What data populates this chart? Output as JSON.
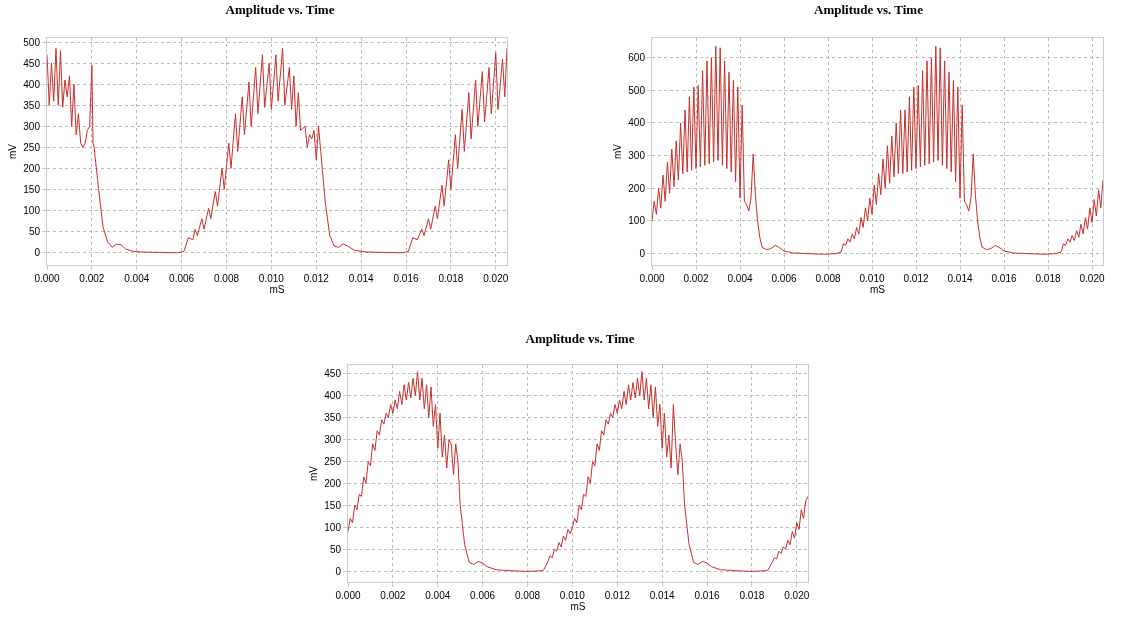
{
  "chart_data": [
    {
      "type": "line",
      "title": "Amplitude vs. Time",
      "xlabel": "mS",
      "ylabel": "mV",
      "xlim": [
        0,
        0.0205
      ],
      "xticks": [
        {
          "value": 0,
          "label": "0.000"
        },
        {
          "value": 0.002,
          "label": "0.002"
        },
        {
          "value": 0.004,
          "label": "0.004"
        },
        {
          "value": 0.006,
          "label": "0.006"
        },
        {
          "value": 0.008,
          "label": "0.008"
        },
        {
          "value": 0.01,
          "label": "0.010"
        },
        {
          "value": 0.012,
          "label": "0.012"
        },
        {
          "value": 0.014,
          "label": "0.014"
        },
        {
          "value": 0.016,
          "label": "0.016"
        },
        {
          "value": 0.018,
          "label": "0.018"
        },
        {
          "value": 0.02,
          "label": "0.020"
        }
      ],
      "ylim": [
        -30,
        510
      ],
      "yticks": [
        0,
        50,
        100,
        150,
        200,
        250,
        300,
        350,
        400,
        450,
        500
      ],
      "grid": true,
      "line_style": "solid",
      "series": [
        {
          "color": "#c8302c",
          "x": [
            0,
            0.0001,
            0.0002,
            0.0003,
            0.0004,
            0.0005,
            0.0006,
            0.0007,
            0.0008,
            0.0009,
            0.001,
            0.0011,
            0.0012,
            0.0013,
            0.0014,
            0.0015,
            0.0016,
            0.0017,
            0.0018,
            0.0019,
            0.002,
            0.00205,
            0.0021,
            0.0023,
            0.0025,
            0.0027,
            0.0029,
            0.0031,
            0.0033,
            0.0035,
            0.0038,
            0.0042,
            0.005,
            0.0058,
            0.0061,
            0.0063,
            0.0065,
            0.0066,
            0.0067,
            0.0069,
            0.007,
            0.0072,
            0.0073,
            0.0075,
            0.0076,
            0.0078,
            0.0079,
            0.0081,
            0.0082,
            0.0084,
            0.0085,
            0.0087,
            0.0088,
            0.009,
            0.0091,
            0.0093,
            0.0094,
            0.0096,
            0.0097,
            0.0099,
            0.01,
            0.0102,
            0.0103,
            0.0105,
            0.0106,
            0.0108,
            0.0109,
            0.011,
            0.0111,
            0.0112,
            0.0113,
            0.0115,
            0.0116,
            0.0117,
            0.0118,
            0.0119,
            0.012,
            0.0121,
            0.0122,
            0.0124,
            0.0126,
            0.0128,
            0.013,
            0.0132,
            0.0134,
            0.0137,
            0.0142,
            0.015,
            0.0158,
            0.0161,
            0.0163,
            0.0165,
            0.0167,
            0.0168,
            0.017,
            0.0171,
            0.0173,
            0.0174,
            0.0176,
            0.0177,
            0.0179,
            0.018,
            0.0182,
            0.0183,
            0.0185,
            0.0186,
            0.0188,
            0.0189,
            0.0191,
            0.0192,
            0.0194,
            0.0195,
            0.0197,
            0.0198,
            0.02,
            0.0201,
            0.0203,
            0.0204,
            0.0205
          ],
          "values": [
            470,
            350,
            450,
            360,
            485,
            350,
            480,
            345,
            410,
            370,
            420,
            300,
            400,
            280,
            330,
            260,
            250,
            260,
            290,
            300,
            445,
            260,
            250,
            150,
            60,
            25,
            12,
            20,
            18,
            8,
            3,
            1,
            0,
            -1,
            2,
            35,
            30,
            55,
            40,
            80,
            55,
            105,
            80,
            145,
            110,
            200,
            150,
            260,
            200,
            330,
            240,
            370,
            280,
            405,
            300,
            440,
            330,
            470,
            345,
            450,
            340,
            470,
            360,
            485,
            350,
            440,
            340,
            420,
            300,
            380,
            290,
            300,
            250,
            280,
            270,
            290,
            220,
            300,
            240,
            120,
            40,
            15,
            12,
            20,
            15,
            5,
            1,
            0,
            -1,
            2,
            35,
            30,
            55,
            40,
            80,
            55,
            110,
            80,
            160,
            110,
            220,
            150,
            280,
            200,
            340,
            240,
            380,
            270,
            410,
            300,
            430,
            310,
            440,
            330,
            475,
            340,
            460,
            370,
            485
          ]
        }
      ]
    },
    {
      "type": "line",
      "title": "Amplitude vs. Time",
      "xlabel": "mS",
      "ylabel": "mV",
      "xlim": [
        0,
        0.0205
      ],
      "xticks": [
        {
          "value": 0,
          "label": "0.000"
        },
        {
          "value": 0.002,
          "label": "0.002"
        },
        {
          "value": 0.004,
          "label": "0.004"
        },
        {
          "value": 0.006,
          "label": "0.006"
        },
        {
          "value": 0.008,
          "label": "0.008"
        },
        {
          "value": 0.01,
          "label": "0.010"
        },
        {
          "value": 0.012,
          "label": "0.012"
        },
        {
          "value": 0.014,
          "label": "0.014"
        },
        {
          "value": 0.016,
          "label": "0.016"
        },
        {
          "value": 0.018,
          "label": "0.018"
        },
        {
          "value": 0.02,
          "label": "0.020"
        }
      ],
      "ylim": [
        -35,
        660
      ],
      "yticks": [
        0,
        100,
        200,
        300,
        400,
        500,
        600
      ],
      "grid": true,
      "line_style": "solid",
      "series": [
        {
          "color": "#c8302c",
          "x": [
            0,
            0.0001,
            0.0002,
            0.0003,
            0.0004,
            0.0005,
            0.0006,
            0.0007,
            0.0008,
            0.0009,
            0.001,
            0.0011,
            0.0012,
            0.0013,
            0.0014,
            0.0015,
            0.0016,
            0.0017,
            0.0018,
            0.0019,
            0.002,
            0.0021,
            0.0022,
            0.0023,
            0.0024,
            0.0025,
            0.0026,
            0.0027,
            0.0028,
            0.0029,
            0.003,
            0.0031,
            0.0032,
            0.0033,
            0.0034,
            0.0035,
            0.0036,
            0.0037,
            0.0038,
            0.0039,
            0.004,
            0.0041,
            0.0042,
            0.0043,
            0.0044,
            0.0045,
            0.0046,
            0.0047,
            0.0048,
            0.0049,
            0.005,
            0.0052,
            0.0054,
            0.0056,
            0.0058,
            0.006,
            0.0064,
            0.007,
            0.0078,
            0.0084,
            0.0086,
            0.0087,
            0.0088,
            0.0089,
            0.009,
            0.0091,
            0.0092,
            0.0093,
            0.0094,
            0.0095,
            0.0096,
            0.0097,
            0.0098,
            0.0099,
            0.01,
            0.0101,
            0.0102,
            0.0103,
            0.0104,
            0.0105,
            0.0106,
            0.0107,
            0.0108,
            0.0109,
            0.011,
            0.0111,
            0.0112,
            0.0113,
            0.0114,
            0.0115,
            0.0116,
            0.0117,
            0.0118,
            0.0119,
            0.012,
            0.0121,
            0.0122,
            0.0123,
            0.0124,
            0.0125,
            0.0126,
            0.0127,
            0.0128,
            0.0129,
            0.013,
            0.0131,
            0.0132,
            0.0133,
            0.0134,
            0.0135,
            0.0136,
            0.0137,
            0.0138,
            0.0139,
            0.014,
            0.0141,
            0.0142,
            0.0143,
            0.0144,
            0.0145,
            0.0146,
            0.0147,
            0.0148,
            0.0149,
            0.015,
            0.0152,
            0.0154,
            0.0156,
            0.0158,
            0.016,
            0.0164,
            0.017,
            0.0178,
            0.0184,
            0.0186,
            0.0187,
            0.0188,
            0.0189,
            0.019,
            0.0191,
            0.0192,
            0.0193,
            0.0194,
            0.0195,
            0.0196,
            0.0197,
            0.0198,
            0.0199,
            0.02,
            0.0201,
            0.0202,
            0.0203,
            0.0204,
            0.0205
          ],
          "values": [
            100,
            160,
            120,
            200,
            140,
            240,
            160,
            280,
            185,
            320,
            205,
            345,
            225,
            400,
            245,
            440,
            250,
            480,
            255,
            510,
            260,
            515,
            265,
            560,
            270,
            590,
            275,
            600,
            280,
            635,
            285,
            630,
            270,
            590,
            260,
            555,
            250,
            530,
            220,
            510,
            170,
            455,
            160,
            150,
            130,
            170,
            305,
            180,
            100,
            50,
            20,
            12,
            15,
            25,
            18,
            8,
            2,
            0,
            -2,
            0,
            5,
            30,
            25,
            45,
            35,
            60,
            45,
            80,
            60,
            110,
            80,
            140,
            100,
            170,
            120,
            210,
            150,
            245,
            180,
            290,
            200,
            330,
            215,
            360,
            235,
            400,
            245,
            440,
            245,
            440,
            250,
            480,
            255,
            510,
            260,
            515,
            265,
            560,
            270,
            590,
            275,
            600,
            280,
            635,
            285,
            630,
            270,
            590,
            260,
            555,
            250,
            530,
            220,
            510,
            170,
            455,
            160,
            150,
            130,
            170,
            305,
            180,
            100,
            50,
            20,
            12,
            15,
            25,
            18,
            8,
            2,
            0,
            -2,
            0,
            5,
            30,
            25,
            45,
            35,
            55,
            40,
            70,
            50,
            90,
            60,
            110,
            75,
            140,
            95,
            165,
            115,
            195,
            140,
            225
          ]
        }
      ]
    },
    {
      "type": "line",
      "title": "Amplitude vs. Time",
      "xlabel": "mS",
      "ylabel": "mV",
      "xlim": [
        0,
        0.0205
      ],
      "xticks": [
        {
          "value": 0,
          "label": "0.000"
        },
        {
          "value": 0.002,
          "label": "0.002"
        },
        {
          "value": 0.004,
          "label": "0.004"
        },
        {
          "value": 0.006,
          "label": "0.006"
        },
        {
          "value": 0.008,
          "label": "0.008"
        },
        {
          "value": 0.01,
          "label": "0.010"
        },
        {
          "value": 0.012,
          "label": "0.012"
        },
        {
          "value": 0.014,
          "label": "0.014"
        },
        {
          "value": 0.016,
          "label": "0.016"
        },
        {
          "value": 0.018,
          "label": "0.018"
        },
        {
          "value": 0.02,
          "label": "0.020"
        }
      ],
      "ylim": [
        -25,
        470
      ],
      "yticks": [
        0,
        50,
        100,
        150,
        200,
        250,
        300,
        350,
        400,
        450
      ],
      "grid": true,
      "line_style": "solid",
      "series": [
        {
          "color": "#c8302c",
          "x": [
            0,
            0.0001,
            0.0002,
            0.0003,
            0.0004,
            0.0005,
            0.0006,
            0.0007,
            0.0008,
            0.0009,
            0.001,
            0.0011,
            0.0012,
            0.0013,
            0.0014,
            0.0015,
            0.0016,
            0.0017,
            0.0018,
            0.0019,
            0.002,
            0.0021,
            0.0022,
            0.0023,
            0.0024,
            0.0025,
            0.0026,
            0.0027,
            0.0028,
            0.0029,
            0.003,
            0.0031,
            0.0032,
            0.0033,
            0.0034,
            0.0035,
            0.0036,
            0.0037,
            0.0038,
            0.0039,
            0.004,
            0.0041,
            0.0042,
            0.0043,
            0.0044,
            0.0045,
            0.0046,
            0.0047,
            0.0048,
            0.0049,
            0.005,
            0.0052,
            0.0054,
            0.0056,
            0.0058,
            0.006,
            0.0062,
            0.0066,
            0.0072,
            0.008,
            0.0087,
            0.0089,
            0.009,
            0.0091,
            0.0092,
            0.0093,
            0.0094,
            0.0095,
            0.0096,
            0.0097,
            0.0098,
            0.0099,
            0.01,
            0.0101,
            0.0102,
            0.0103,
            0.0104,
            0.0105,
            0.0106,
            0.0107,
            0.0108,
            0.0109,
            0.011,
            0.0111,
            0.0112,
            0.0113,
            0.0114,
            0.0115,
            0.0116,
            0.0117,
            0.0118,
            0.0119,
            0.012,
            0.0121,
            0.0122,
            0.0123,
            0.0124,
            0.0125,
            0.0126,
            0.0127,
            0.0128,
            0.0129,
            0.013,
            0.0131,
            0.0132,
            0.0133,
            0.0134,
            0.0135,
            0.0136,
            0.0137,
            0.0138,
            0.0139,
            0.014,
            0.0141,
            0.0142,
            0.0143,
            0.0144,
            0.0145,
            0.0146,
            0.0147,
            0.0148,
            0.0149,
            0.015,
            0.0152,
            0.0154,
            0.0156,
            0.0158,
            0.016,
            0.0162,
            0.0166,
            0.0172,
            0.018,
            0.0187,
            0.0189,
            0.019,
            0.0191,
            0.0192,
            0.0193,
            0.0194,
            0.0195,
            0.0196,
            0.0197,
            0.0198,
            0.0199,
            0.02,
            0.0201,
            0.0202,
            0.0203,
            0.0204,
            0.0205
          ],
          "values": [
            90,
            120,
            110,
            150,
            140,
            175,
            170,
            215,
            200,
            250,
            240,
            290,
            275,
            320,
            310,
            345,
            335,
            360,
            350,
            380,
            360,
            390,
            370,
            410,
            380,
            425,
            390,
            430,
            395,
            440,
            400,
            455,
            390,
            440,
            370,
            425,
            350,
            420,
            330,
            380,
            280,
            360,
            260,
            310,
            235,
            300,
            290,
            220,
            290,
            250,
            150,
            60,
            20,
            15,
            22,
            18,
            10,
            3,
            1,
            -1,
            1,
            20,
            35,
            30,
            50,
            45,
            65,
            55,
            80,
            70,
            95,
            85,
            100,
            120,
            110,
            150,
            140,
            175,
            170,
            215,
            200,
            250,
            240,
            290,
            275,
            320,
            310,
            345,
            335,
            360,
            350,
            380,
            360,
            390,
            370,
            410,
            380,
            425,
            390,
            430,
            395,
            440,
            400,
            455,
            390,
            440,
            370,
            425,
            350,
            420,
            330,
            380,
            280,
            360,
            260,
            310,
            235,
            380,
            290,
            220,
            290,
            250,
            150,
            60,
            20,
            15,
            22,
            18,
            10,
            3,
            1,
            -1,
            1,
            20,
            30,
            28,
            45,
            40,
            55,
            50,
            70,
            60,
            90,
            75,
            110,
            95,
            140,
            120,
            160,
            170
          ]
        }
      ]
    }
  ]
}
